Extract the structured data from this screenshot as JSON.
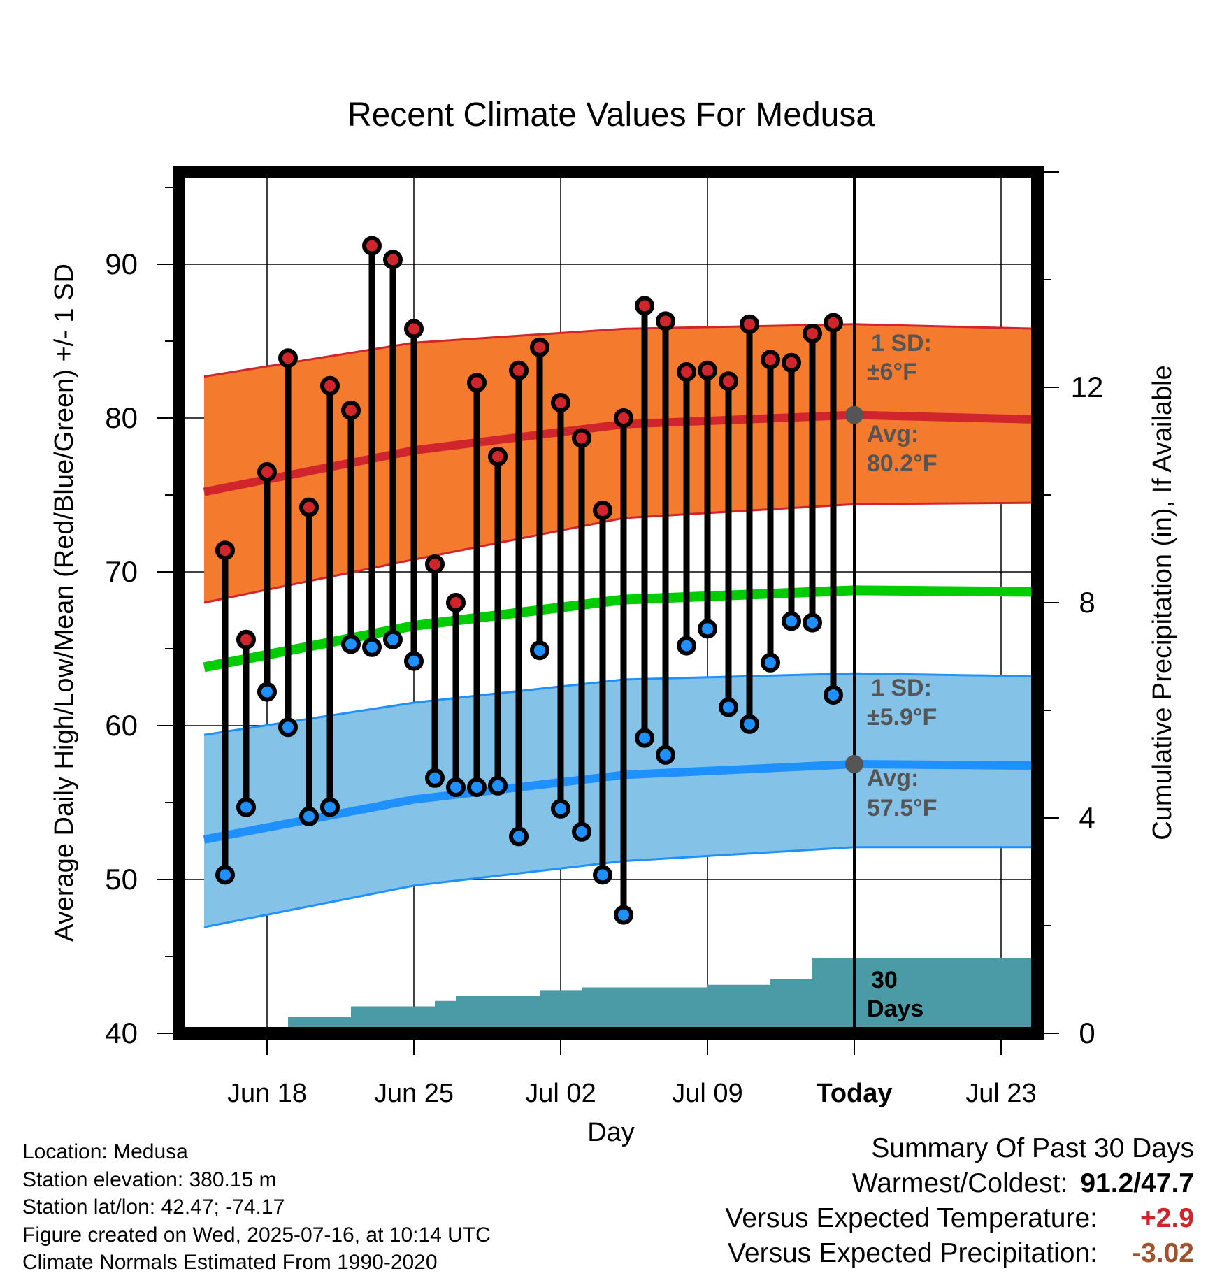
{
  "chart_data": {
    "type": "line",
    "title": "Recent Climate Values For Medusa",
    "xlabel": "Day",
    "ylabel": "Average Daily High/Low/Mean (Red/Blue/Green) +/- 1 SD",
    "y2label": "Cumulative Precipitation (in), If Available",
    "ylim": [
      40,
      96
    ],
    "yticks": [
      "40",
      "50",
      "60",
      "70",
      "80",
      "90"
    ],
    "y2lim": [
      0,
      16
    ],
    "y2ticks": [
      "0",
      "4",
      "8",
      "12"
    ],
    "x_ticks": [
      "Jun 18",
      "Jun 25",
      "Jul 02",
      "Jul 09",
      "Today",
      "Jul 23"
    ],
    "x_range": [
      "2025-06-15",
      "2025-07-25"
    ],
    "today": "2025-07-16",
    "grid": true,
    "colors": {
      "high": "#d0252c",
      "low": "#1e90ff",
      "mean": "#00cc00",
      "high_band": "#f47a2e",
      "low_band": "#85c2e8",
      "precip": "#4a9ba5"
    },
    "annotations": {
      "high_sd": "1 SD:",
      "high_sd_value": "±6°F",
      "high_avg": "Avg:",
      "high_avg_value": "80.2°F",
      "low_sd": "1 SD:",
      "low_sd_value": "±5.9°F",
      "low_avg": "Avg:",
      "low_avg_value": "57.5°F",
      "days_label": "30",
      "days_label2": "Days"
    },
    "normal_high": {
      "dates": [
        "2025-06-15",
        "2025-06-25",
        "2025-07-05",
        "2025-07-16",
        "2025-07-25"
      ],
      "avg": [
        75.2,
        77.9,
        79.6,
        80.2,
        79.9
      ],
      "upper": [
        82.7,
        84.9,
        85.8,
        86.1,
        85.8
      ],
      "lower": [
        68.0,
        70.8,
        73.5,
        74.4,
        74.5
      ]
    },
    "normal_low": {
      "dates": [
        "2025-06-15",
        "2025-06-25",
        "2025-07-05",
        "2025-07-16",
        "2025-07-25"
      ],
      "avg": [
        52.6,
        55.2,
        56.8,
        57.5,
        57.4
      ],
      "upper": [
        59.4,
        61.5,
        63.0,
        63.4,
        63.2
      ],
      "lower": [
        46.9,
        49.6,
        51.2,
        52.1,
        52.1
      ]
    },
    "normal_mean": {
      "dates": [
        "2025-06-15",
        "2025-06-25",
        "2025-07-05",
        "2025-07-16",
        "2025-07-25"
      ],
      "values": [
        63.8,
        66.5,
        68.2,
        68.8,
        68.7
      ]
    },
    "observed": {
      "dates": [
        "2025-06-16",
        "2025-06-17",
        "2025-06-18",
        "2025-06-19",
        "2025-06-20",
        "2025-06-21",
        "2025-06-22",
        "2025-06-23",
        "2025-06-24",
        "2025-06-25",
        "2025-06-26",
        "2025-06-27",
        "2025-06-28",
        "2025-06-29",
        "2025-06-30",
        "2025-07-01",
        "2025-07-02",
        "2025-07-03",
        "2025-07-04",
        "2025-07-05",
        "2025-07-06",
        "2025-07-07",
        "2025-07-08",
        "2025-07-09",
        "2025-07-10",
        "2025-07-11",
        "2025-07-12",
        "2025-07-13",
        "2025-07-14",
        "2025-07-15"
      ],
      "high": [
        71.4,
        65.6,
        76.5,
        83.9,
        74.2,
        82.1,
        80.5,
        91.2,
        90.3,
        85.8,
        70.5,
        68.0,
        82.3,
        77.5,
        83.1,
        84.6,
        81.0,
        78.7,
        74.0,
        80.0,
        87.3,
        86.3,
        83.0,
        83.1,
        82.4,
        86.1,
        83.8,
        83.6,
        85.5,
        86.2
      ],
      "low": [
        50.3,
        54.7,
        62.2,
        59.9,
        54.1,
        54.7,
        65.3,
        65.1,
        65.6,
        64.2,
        56.6,
        56.0,
        56.0,
        56.1,
        52.8,
        64.9,
        54.6,
        53.1,
        50.3,
        47.7,
        59.2,
        58.1,
        65.2,
        66.3,
        61.2,
        60.1,
        64.1,
        66.8,
        66.7,
        62.0
      ]
    },
    "precip": {
      "dates": [
        "2025-06-15",
        "2025-06-18",
        "2025-06-19",
        "2025-06-21",
        "2025-06-22",
        "2025-06-25",
        "2025-06-26",
        "2025-06-27",
        "2025-06-30",
        "2025-07-01",
        "2025-07-03",
        "2025-07-08",
        "2025-07-09",
        "2025-07-11",
        "2025-07-12",
        "2025-07-13",
        "2025-07-14",
        "2025-07-25"
      ],
      "values": [
        0.0,
        0.04,
        0.3,
        0.3,
        0.5,
        0.5,
        0.6,
        0.7,
        0.7,
        0.8,
        0.85,
        0.85,
        0.9,
        0.9,
        1.0,
        1.0,
        1.4,
        1.4
      ]
    }
  },
  "footer": {
    "location": "Location: Medusa",
    "elevation": "Station elevation: 380.15 m",
    "latlon": "Station lat/lon: 42.47; -74.17",
    "created": "Figure created on Wed, 2025-07-16, at 10:14 UTC",
    "normals": "Climate Normals Estimated From 1990-2020"
  },
  "summary": {
    "title": "Summary Of Past 30 Days",
    "warm_cold_label": "Warmest/Coldest:",
    "warm_cold_value": "91.2/47.7",
    "temp_label": "Versus Expected Temperature:",
    "temp_value": "+2.9",
    "precip_label": "Versus Expected Precipitation:",
    "precip_value": "-3.02"
  }
}
